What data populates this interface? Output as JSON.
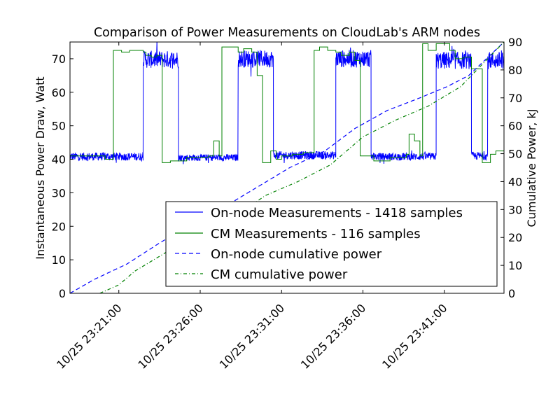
{
  "chart_data": {
    "type": "line",
    "title": "Comparison of Power Measurements on CloudLab's ARM nodes",
    "ylabel_left": "Instantaneous Power Draw, Watt",
    "ylabel_right": "Cumulative Power, kJ",
    "ylim_left": [
      0,
      75
    ],
    "ylim_right": [
      0,
      90
    ],
    "xlim": [
      "10/25 23:18:00",
      "10/25 23:44:40"
    ],
    "grid": false,
    "legend_position": "lower-right",
    "left_ticks": [
      "0",
      "10",
      "20",
      "30",
      "40",
      "50",
      "60",
      "70"
    ],
    "right_ticks": [
      "0",
      "10",
      "20",
      "30",
      "40",
      "50",
      "60",
      "70",
      "80",
      "90"
    ],
    "x_ticks": [
      "10/25 23:21:00",
      "10/25 23:26:00",
      "10/25 23:31:00",
      "10/25 23:36:00",
      "10/25 23:41:00"
    ],
    "series": [
      {
        "name": "On-node Measurements - 1418 samples",
        "axis": "left",
        "style": "solid",
        "color": "#0000ff",
        "segments": [
          [
            "10/25 23:18:00",
            "10/25 23:22:30",
            40.8,
            1.2
          ],
          [
            "10/25 23:22:30",
            "10/25 23:24:40",
            69.8,
            2.6
          ],
          [
            "10/25 23:24:40",
            "10/25 23:28:20",
            40.5,
            1.0
          ],
          [
            "10/25 23:28:20",
            "10/25 23:30:30",
            70.0,
            2.6
          ],
          [
            "10/25 23:30:30",
            "10/25 23:34:20",
            41.2,
            1.2
          ],
          [
            "10/25 23:34:20",
            "10/25 23:36:30",
            70.0,
            2.6
          ],
          [
            "10/25 23:36:30",
            "10/25 23:40:30",
            40.8,
            1.1
          ],
          [
            "10/25 23:40:30",
            "10/25 23:42:40",
            69.5,
            2.6
          ],
          [
            "10/25 23:42:40",
            "10/25 23:43:40",
            41.0,
            1.2
          ],
          [
            "10/25 23:43:40",
            "10/25 23:44:40",
            69.5,
            2.6
          ]
        ]
      },
      {
        "name": "CM Measurements - 116 samples",
        "axis": "left",
        "style": "step",
        "color": "#008000",
        "steps": [
          [
            "10/25 23:18:00",
            41
          ],
          [
            "10/25 23:20:00",
            41
          ],
          [
            "10/25 23:20:10",
            40
          ],
          [
            "10/25 23:20:40",
            72.5
          ],
          [
            "10/25 23:21:10",
            72
          ],
          [
            "10/25 23:21:40",
            72.5
          ],
          [
            "10/25 23:22:30",
            72
          ],
          [
            "10/25 23:22:40",
            71
          ],
          [
            "10/25 23:23:00",
            70.5
          ],
          [
            "10/25 23:23:20",
            71
          ],
          [
            "10/25 23:23:40",
            39
          ],
          [
            "10/25 23:24:10",
            39.5
          ],
          [
            "10/25 23:25:10",
            40.5
          ],
          [
            "10/25 23:26:30",
            41
          ],
          [
            "10/25 23:26:50",
            45.5
          ],
          [
            "10/25 23:27:10",
            41
          ],
          [
            "10/25 23:27:20",
            73.5
          ],
          [
            "10/25 23:27:50",
            73.5
          ],
          [
            "10/25 23:28:20",
            72
          ],
          [
            "10/25 23:28:40",
            73
          ],
          [
            "10/25 23:29:10",
            72
          ],
          [
            "10/25 23:29:30",
            65
          ],
          [
            "10/25 23:29:50",
            39
          ],
          [
            "10/25 23:30:20",
            42.5
          ],
          [
            "10/25 23:30:40",
            40
          ],
          [
            "10/25 23:31:00",
            41
          ],
          [
            "10/25 23:31:40",
            41.5
          ],
          [
            "10/25 23:32:20",
            42
          ],
          [
            "10/25 23:33:00",
            72.5
          ],
          [
            "10/25 23:33:20",
            73.5
          ],
          [
            "10/25 23:33:50",
            72.5
          ],
          [
            "10/25 23:34:20",
            72
          ],
          [
            "10/25 23:34:40",
            71
          ],
          [
            "10/25 23:35:10",
            72
          ],
          [
            "10/25 23:35:30",
            69.5
          ],
          [
            "10/25 23:35:50",
            41
          ],
          [
            "10/25 23:36:40",
            39.5
          ],
          [
            "10/25 23:37:40",
            40.5
          ],
          [
            "10/25 23:38:40",
            41.5
          ],
          [
            "10/25 23:38:50",
            47.5
          ],
          [
            "10/25 23:39:10",
            45.5
          ],
          [
            "10/25 23:39:30",
            41
          ],
          [
            "10/25 23:39:40",
            74.5
          ],
          [
            "10/25 23:40:00",
            72.5
          ],
          [
            "10/25 23:40:30",
            74.5
          ],
          [
            "10/25 23:41:20",
            72.5
          ],
          [
            "10/25 23:41:40",
            70
          ],
          [
            "10/25 23:42:10",
            70.5
          ],
          [
            "10/25 23:42:40",
            67
          ],
          [
            "10/25 23:43:20",
            39
          ],
          [
            "10/25 23:43:50",
            41.5
          ],
          [
            "10/25 23:44:10",
            42.5
          ],
          [
            "10/25 23:44:40",
            42.5
          ]
        ]
      },
      {
        "name": "On-node cumulative power",
        "axis": "right",
        "style": "dashed",
        "color": "#0000ff",
        "points": [
          [
            "10/25 23:18:00",
            0
          ],
          [
            "10/25 23:19:30",
            5
          ],
          [
            "10/25 23:21:30",
            10.5
          ],
          [
            "10/25 23:23:30",
            18
          ],
          [
            "10/25 23:25:30",
            25
          ],
          [
            "10/25 23:27:30",
            31
          ],
          [
            "10/25 23:29:30",
            38
          ],
          [
            "10/25 23:31:30",
            45
          ],
          [
            "10/25 23:33:40",
            51
          ],
          [
            "10/25 23:35:30",
            59
          ],
          [
            "10/25 23:37:30",
            65.5
          ],
          [
            "10/25 23:39:30",
            70
          ],
          [
            "10/25 23:41:10",
            74
          ],
          [
            "10/25 23:42:30",
            78
          ],
          [
            "10/25 23:44:40",
            90
          ]
        ]
      },
      {
        "name": "CM cumulative power",
        "axis": "right",
        "style": "dashdot",
        "color": "#008000",
        "points": [
          [
            "10/25 23:19:50",
            0
          ],
          [
            "10/25 23:21:00",
            3
          ],
          [
            "10/25 23:22:00",
            8
          ],
          [
            "10/25 23:24:00",
            15
          ],
          [
            "10/25 23:26:00",
            21
          ],
          [
            "10/25 23:28:00",
            27
          ],
          [
            "10/25 23:30:00",
            35
          ],
          [
            "10/25 23:32:00",
            40
          ],
          [
            "10/25 23:34:00",
            46
          ],
          [
            "10/25 23:36:00",
            56
          ],
          [
            "10/25 23:38:00",
            62
          ],
          [
            "10/25 23:40:00",
            67
          ],
          [
            "10/25 23:42:00",
            74
          ],
          [
            "10/25 23:44:40",
            90
          ]
        ]
      }
    ]
  }
}
